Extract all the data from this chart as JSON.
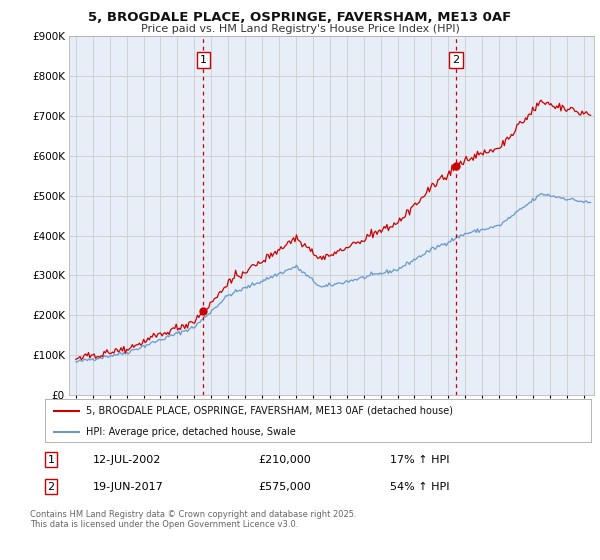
{
  "title1": "5, BROGDALE PLACE, OSPRINGE, FAVERSHAM, ME13 0AF",
  "title2": "Price paid vs. HM Land Registry's House Price Index (HPI)",
  "legend_property": "5, BROGDALE PLACE, OSPRINGE, FAVERSHAM, ME13 0AF (detached house)",
  "legend_hpi": "HPI: Average price, detached house, Swale",
  "sale1_date": "12-JUL-2002",
  "sale1_price": "£210,000",
  "sale1_hpi": "17% ↑ HPI",
  "sale1_year": 2002.54,
  "sale1_value": 210000,
  "sale2_date": "19-JUN-2017",
  "sale2_price": "£575,000",
  "sale2_hpi": "54% ↑ HPI",
  "sale2_year": 2017.46,
  "sale2_value": 575000,
  "property_color": "#cc0000",
  "hpi_color": "#6699cc",
  "vline_color": "#cc0000",
  "background_color": "#ffffff",
  "plot_bg_color": "#e8eef8",
  "grid_color": "#cccccc",
  "ylim": [
    0,
    900000
  ],
  "yticks": [
    0,
    100000,
    200000,
    300000,
    400000,
    500000,
    600000,
    700000,
    800000,
    900000
  ],
  "footer": "Contains HM Land Registry data © Crown copyright and database right 2025.\nThis data is licensed under the Open Government Licence v3.0."
}
